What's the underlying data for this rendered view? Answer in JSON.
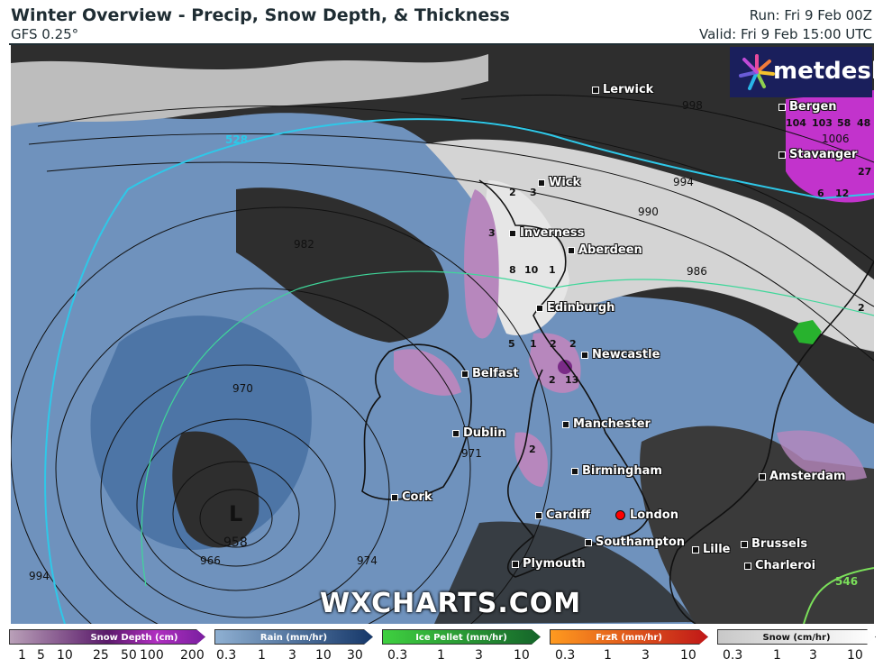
{
  "header": {
    "title": "Winter Overview - Precip, Snow Depth, & Thickness",
    "model": "GFS 0.25°",
    "run": "Run: Fri 9 Feb 00Z",
    "valid": "Valid: Fri 9 Feb 15:00 UTC"
  },
  "branding": {
    "logo": "metdesk",
    "watermark": "WXCHARTS.COM"
  },
  "map": {
    "cities": [
      "Lerwick",
      "Bergen",
      "Stavanger",
      "Wick",
      "Inverness",
      "Aberdeen",
      "Edinburgh",
      "Newcastle",
      "Belfast",
      "Dublin",
      "Manchester",
      "Birmingham",
      "Cork",
      "Cardiff",
      "London",
      "Southampton",
      "Plymouth",
      "Amsterdam",
      "Lille",
      "Brussels",
      "Charleroi"
    ],
    "isobar_labels": [
      "998",
      "994",
      "990",
      "986",
      "982",
      "970",
      "971",
      "966",
      "974",
      "994",
      "1006"
    ],
    "thickness_labels": [
      "528",
      "546"
    ],
    "low": {
      "symbol": "L",
      "pressure": "958"
    },
    "snow_depth_values": [
      "2",
      "3",
      "3",
      "8",
      "10",
      "1",
      "5",
      "1",
      "2",
      "2",
      "2",
      "13",
      "2",
      "104",
      "103",
      "58",
      "48",
      "27",
      "6",
      "12",
      "2"
    ],
    "highlight_city": "London",
    "colors": {
      "land": "#2e2e2e",
      "rain": "#6f92bd",
      "snow": "#d9d9d9",
      "snow_depth": "#c07fc6",
      "ice": "#2fbf3a",
      "thickness": "#2ec8e8",
      "marker": "#ff0000"
    }
  },
  "legend": [
    {
      "label": "Snow Depth (cm)",
      "ticks": [
        "1",
        "5",
        "10",
        "25",
        "50",
        "100",
        "200"
      ],
      "color_from": "#b9a0b8",
      "color_to": "#7a1fa0"
    },
    {
      "label": "Rain (mm/hr)",
      "ticks": [
        "0.3",
        "1",
        "3",
        "10",
        "30"
      ],
      "color_from": "#8fb0d2",
      "color_to": "#16386a"
    },
    {
      "label": "Ice Pellet (mm/hr)",
      "ticks": [
        "0.3",
        "1",
        "3",
        "10"
      ],
      "color_from": "#3fd040",
      "color_to": "#15652a"
    },
    {
      "label": "FrzR (mm/hr)",
      "ticks": [
        "0.3",
        "1",
        "3",
        "10"
      ],
      "color_from": "#ff9a1f",
      "color_to": "#c01818"
    },
    {
      "label": "Snow (cm/hr)",
      "ticks": [
        "0.3",
        "1",
        "3",
        "10"
      ],
      "color_from": "#c8c8c8",
      "color_to": "#ffffff"
    }
  ]
}
